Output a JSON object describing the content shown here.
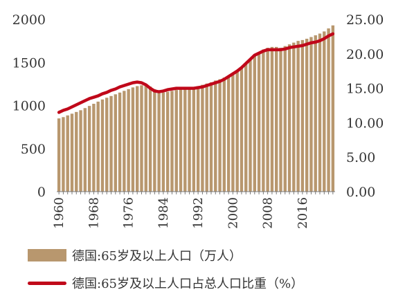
{
  "chart_data": {
    "type": "bar+line",
    "x": [
      1960,
      1961,
      1962,
      1963,
      1964,
      1965,
      1966,
      1967,
      1968,
      1969,
      1970,
      1971,
      1972,
      1973,
      1974,
      1975,
      1976,
      1977,
      1978,
      1979,
      1980,
      1981,
      1982,
      1983,
      1984,
      1985,
      1986,
      1987,
      1988,
      1989,
      1990,
      1991,
      1992,
      1993,
      1994,
      1995,
      1996,
      1997,
      1998,
      1999,
      2000,
      2001,
      2002,
      2003,
      2004,
      2005,
      2006,
      2007,
      2008,
      2009,
      2010,
      2011,
      2012,
      2013,
      2014,
      2015,
      2016,
      2017,
      2018,
      2019,
      2020,
      2021,
      2022,
      2023
    ],
    "x_tick_labels": [
      "1960",
      "1968",
      "1976",
      "1984",
      "1992",
      "2000",
      "2008",
      "2016"
    ],
    "left_axis": {
      "ticks": [
        "0",
        "500",
        "1000",
        "1500",
        "2000"
      ],
      "ylim": [
        0,
        2000
      ]
    },
    "right_axis": {
      "ticks": [
        "0.00",
        "5.00",
        "10.00",
        "15.00",
        "20.00",
        "25.00"
      ],
      "ylim": [
        0,
        25
      ]
    },
    "series": [
      {
        "name": "德国:65岁及以上人口（万人）",
        "type": "bar",
        "axis": "left",
        "color": "#b8976e",
        "values": [
          850,
          865,
          885,
          905,
          925,
          945,
          970,
          995,
          1020,
          1045,
          1070,
          1090,
          1110,
          1130,
          1150,
          1170,
          1190,
          1210,
          1225,
          1235,
          1235,
          1220,
          1190,
          1165,
          1150,
          1160,
          1170,
          1180,
          1190,
          1195,
          1200,
          1210,
          1225,
          1240,
          1255,
          1270,
          1290,
          1305,
          1325,
          1345,
          1370,
          1400,
          1440,
          1480,
          1530,
          1580,
          1620,
          1650,
          1670,
          1680,
          1680,
          1670,
          1690,
          1710,
          1730,
          1750,
          1760,
          1775,
          1795,
          1815,
          1835,
          1860,
          1895,
          1930
        ]
      },
      {
        "name": "德国:65岁及以上人口占总人口比重（%）",
        "type": "line",
        "axis": "right",
        "color": "#c0081a",
        "values": [
          11.5,
          11.8,
          12.0,
          12.3,
          12.6,
          12.9,
          13.2,
          13.5,
          13.7,
          13.9,
          14.2,
          14.4,
          14.7,
          14.9,
          15.2,
          15.4,
          15.6,
          15.8,
          15.9,
          15.8,
          15.5,
          15.0,
          14.6,
          14.5,
          14.6,
          14.8,
          14.9,
          15.0,
          15.0,
          15.0,
          15.0,
          15.0,
          15.1,
          15.2,
          15.4,
          15.6,
          15.8,
          16.0,
          16.3,
          16.7,
          17.1,
          17.5,
          18.0,
          18.6,
          19.2,
          19.8,
          20.1,
          20.4,
          20.6,
          20.6,
          20.6,
          20.6,
          20.7,
          20.9,
          21.0,
          21.1,
          21.2,
          21.4,
          21.6,
          21.7,
          21.9,
          22.2,
          22.6,
          22.9
        ]
      }
    ]
  }
}
